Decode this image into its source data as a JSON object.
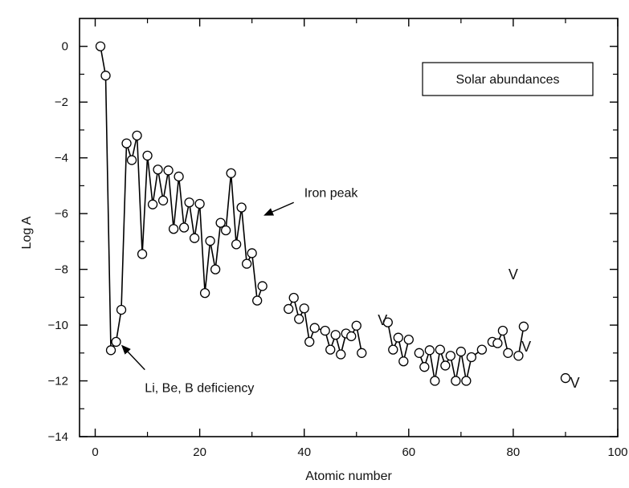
{
  "chart_data": {
    "type": "line",
    "xlabel": "Atomic number",
    "ylabel": "Log A",
    "xlim": [
      -3,
      100
    ],
    "ylim": [
      -14,
      1
    ],
    "xticks": [
      0,
      20,
      40,
      60,
      80,
      100
    ],
    "yticks": [
      0,
      -2,
      -4,
      -6,
      -8,
      -10,
      -12,
      -14
    ],
    "xtick_labels": [
      "0",
      "20",
      "40",
      "60",
      "80",
      "100"
    ],
    "ytick_labels": [
      "0",
      "−2",
      "−4",
      "−6",
      "−8",
      "−10",
      "−12",
      "−14"
    ],
    "grid": false,
    "legend": {
      "position": "top-right",
      "text": "Solar abundances"
    },
    "series": [
      {
        "points": [
          [
            1,
            0
          ],
          [
            2,
            -1.05
          ],
          [
            3,
            -10.9
          ],
          [
            4,
            -10.6
          ],
          [
            5,
            -9.45
          ],
          [
            6,
            -3.48
          ],
          [
            7,
            -4.08
          ],
          [
            8,
            -3.2
          ],
          [
            9,
            -7.45
          ],
          [
            10,
            -3.92
          ],
          [
            11,
            -5.67
          ],
          [
            12,
            -4.42
          ],
          [
            13,
            -5.53
          ],
          [
            14,
            -4.45
          ],
          [
            15,
            -6.55
          ],
          [
            16,
            -4.67
          ],
          [
            17,
            -6.5
          ],
          [
            18,
            -5.6
          ],
          [
            19,
            -6.88
          ],
          [
            20,
            -5.65
          ],
          [
            21,
            -8.85
          ],
          [
            22,
            -6.98
          ],
          [
            23,
            -8.0
          ],
          [
            24,
            -6.33
          ],
          [
            25,
            -6.6
          ],
          [
            26,
            -4.55
          ],
          [
            27,
            -7.1
          ],
          [
            28,
            -5.78
          ],
          [
            29,
            -7.8
          ],
          [
            30,
            -7.42
          ],
          [
            31,
            -9.12
          ],
          [
            32,
            -8.6
          ]
        ]
      },
      {
        "points": [
          [
            37,
            -9.42
          ],
          [
            38,
            -9.02
          ],
          [
            39,
            -9.78
          ],
          [
            40,
            -9.4
          ],
          [
            41,
            -10.6
          ],
          [
            42,
            -10.1
          ],
          [
            44,
            -10.2
          ],
          [
            45,
            -10.88
          ],
          [
            46,
            -10.35
          ],
          [
            47,
            -11.05
          ],
          [
            48,
            -10.3
          ],
          [
            49,
            -10.4
          ],
          [
            50,
            -10.02
          ],
          [
            51,
            -11.0
          ]
        ]
      },
      {
        "points": [
          [
            56,
            -9.9
          ],
          [
            57,
            -10.88
          ],
          [
            58,
            -10.45
          ],
          [
            59,
            -11.3
          ],
          [
            60,
            -10.52
          ]
        ]
      },
      {
        "points": [
          [
            62,
            -11.0
          ],
          [
            63,
            -11.5
          ],
          [
            64,
            -10.9
          ],
          [
            65,
            -12.0
          ],
          [
            66,
            -10.88
          ],
          [
            67,
            -11.45
          ],
          [
            68,
            -11.1
          ],
          [
            69,
            -12.0
          ],
          [
            70,
            -10.95
          ],
          [
            71,
            -12.0
          ],
          [
            72,
            -11.15
          ],
          [
            74,
            -10.88
          ]
        ]
      },
      {
        "points": [
          [
            76,
            -10.6
          ],
          [
            77,
            -10.65
          ],
          [
            78,
            -10.2
          ],
          [
            79,
            -11.0
          ]
        ]
      },
      {
        "points": [
          [
            81,
            -11.1
          ],
          [
            82,
            -10.05
          ]
        ]
      },
      {
        "points": [
          [
            90,
            -11.9
          ]
        ]
      }
    ],
    "v_markers": [
      {
        "text": "V",
        "x": 55,
        "y": -10.0
      },
      {
        "text": "V",
        "x": 80,
        "y": -8.35
      },
      {
        "text": "V",
        "x": 82.5,
        "y": -10.95
      },
      {
        "text": "V",
        "x": 91.8,
        "y": -12.25
      }
    ],
    "annotations": [
      {
        "text": "Iron peak",
        "x": 40,
        "y": -5.4,
        "arrow_from": [
          38,
          -5.6
        ],
        "arrow_to": [
          32.5,
          -6.05
        ]
      },
      {
        "text": "Li, Be, B deficiency",
        "x": 9.5,
        "y": -12.4,
        "arrow_from": [
          9.5,
          -11.6
        ],
        "arrow_to": [
          5.2,
          -10.75
        ]
      }
    ]
  }
}
